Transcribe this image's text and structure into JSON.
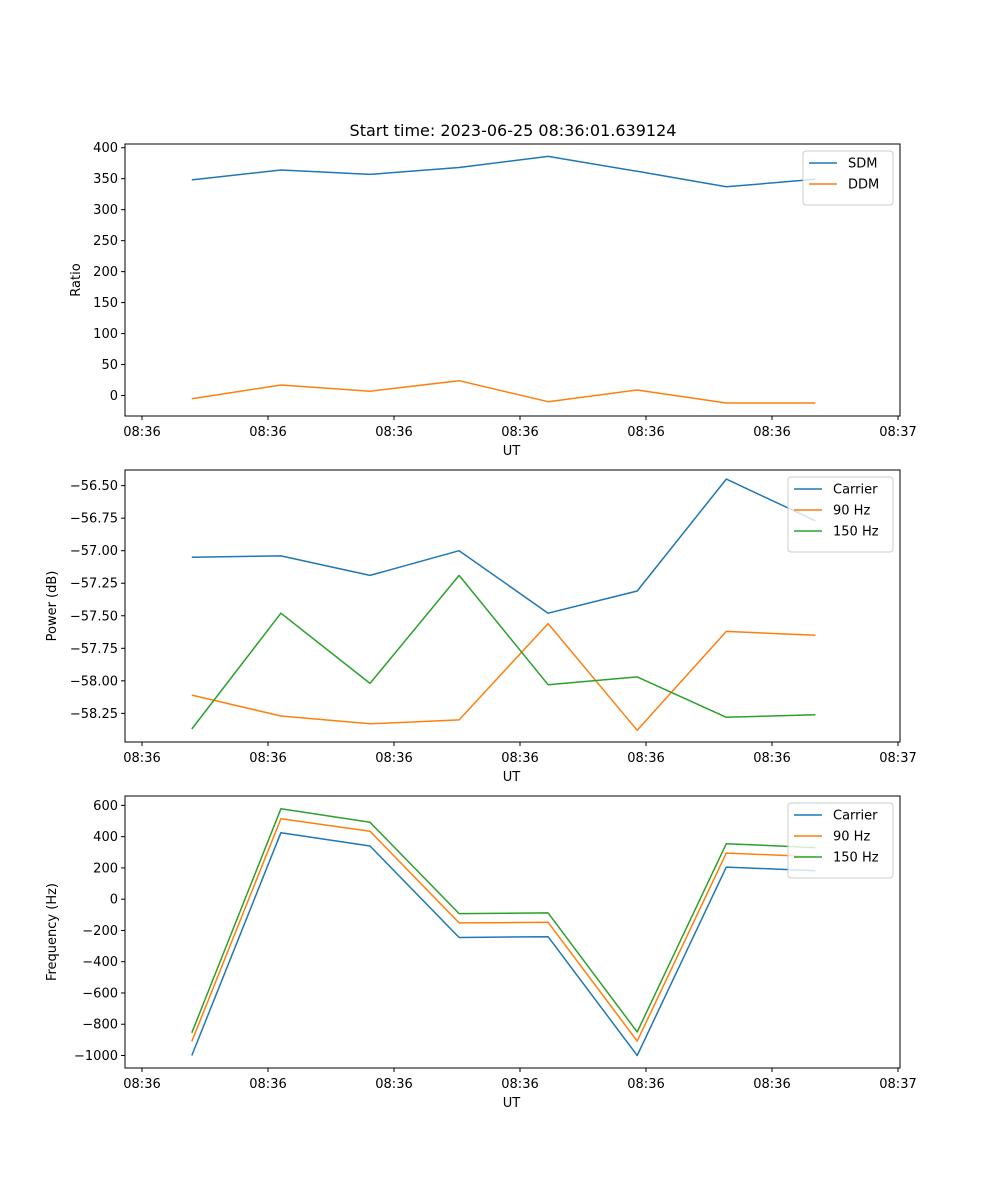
{
  "figure": {
    "title": "Start time: 2023-06-25 08:36:01.639124",
    "xlabel": "UT",
    "x_tick_labels": [
      "08:36",
      "08:36",
      "08:36",
      "08:36",
      "08:36",
      "08:36",
      "08:37"
    ]
  },
  "colors": {
    "blue": "#1f77b4",
    "orange": "#ff7f0e",
    "green": "#2ca02c"
  },
  "chart_data": [
    {
      "type": "line",
      "title": "Start time: 2023-06-25 08:36:01.639124",
      "xlabel": "UT",
      "ylabel": "Ratio",
      "x": [
        1,
        2,
        3,
        4,
        5,
        6,
        7,
        8
      ],
      "xlim": [
        0.25,
        8.95
      ],
      "ylim": [
        -33,
        406
      ],
      "yticks": [
        0,
        50,
        100,
        150,
        200,
        250,
        300,
        350,
        400
      ],
      "legend": "top-right",
      "series": [
        {
          "name": "SDM",
          "color": "#1f77b4",
          "values": [
            348,
            364,
            357,
            368,
            386,
            362,
            337,
            349
          ]
        },
        {
          "name": "DDM",
          "color": "#ff7f0e",
          "values": [
            -5,
            17,
            7,
            24,
            -10,
            9,
            -12,
            -12
          ]
        }
      ]
    },
    {
      "type": "line",
      "xlabel": "UT",
      "ylabel": "Power (dB)",
      "x": [
        1,
        2,
        3,
        4,
        5,
        6,
        7,
        8
      ],
      "xlim": [
        0.25,
        8.95
      ],
      "ylim": [
        -58.47,
        -56.38
      ],
      "yticks": [
        -58.25,
        -58.0,
        -57.75,
        -57.5,
        -57.25,
        -57.0,
        -56.75,
        -56.5
      ],
      "ytick_labels": [
        "−58.25",
        "−58.00",
        "−57.75",
        "−57.50",
        "−57.25",
        "−57.00",
        "−56.75",
        "−56.50"
      ],
      "legend": "top-right",
      "series": [
        {
          "name": "Carrier",
          "color": "#1f77b4",
          "values": [
            -57.05,
            -57.04,
            -57.19,
            -57.0,
            -57.48,
            -57.31,
            -56.45,
            -56.77
          ]
        },
        {
          "name": "90 Hz",
          "color": "#ff7f0e",
          "values": [
            -58.11,
            -58.27,
            -58.33,
            -58.3,
            -57.56,
            -58.38,
            -57.62,
            -57.65
          ]
        },
        {
          "name": "150 Hz",
          "color": "#2ca02c",
          "values": [
            -58.37,
            -57.48,
            -58.02,
            -57.19,
            -58.03,
            -57.97,
            -58.28,
            -58.26
          ]
        }
      ]
    },
    {
      "type": "line",
      "xlabel": "UT",
      "ylabel": "Frequency (Hz)",
      "x": [
        1,
        2,
        3,
        4,
        5,
        6,
        7,
        8
      ],
      "xlim": [
        0.25,
        8.95
      ],
      "ylim": [
        -1080,
        660
      ],
      "yticks": [
        -1000,
        -800,
        -600,
        -400,
        -200,
        0,
        200,
        400,
        600
      ],
      "ytick_labels": [
        "−1000",
        "−800",
        "−600",
        "−400",
        "−200",
        "0",
        "200",
        "400",
        "600"
      ],
      "legend": "top-right",
      "series": [
        {
          "name": "Carrier",
          "color": "#1f77b4",
          "values": [
            -1000,
            425,
            340,
            -245,
            -240,
            -1000,
            205,
            182
          ]
        },
        {
          "name": "90 Hz",
          "color": "#ff7f0e",
          "values": [
            -910,
            515,
            435,
            -152,
            -148,
            -908,
            295,
            272
          ]
        },
        {
          "name": "150 Hz",
          "color": "#2ca02c",
          "values": [
            -855,
            578,
            492,
            -92,
            -88,
            -850,
            355,
            330
          ]
        }
      ]
    }
  ]
}
